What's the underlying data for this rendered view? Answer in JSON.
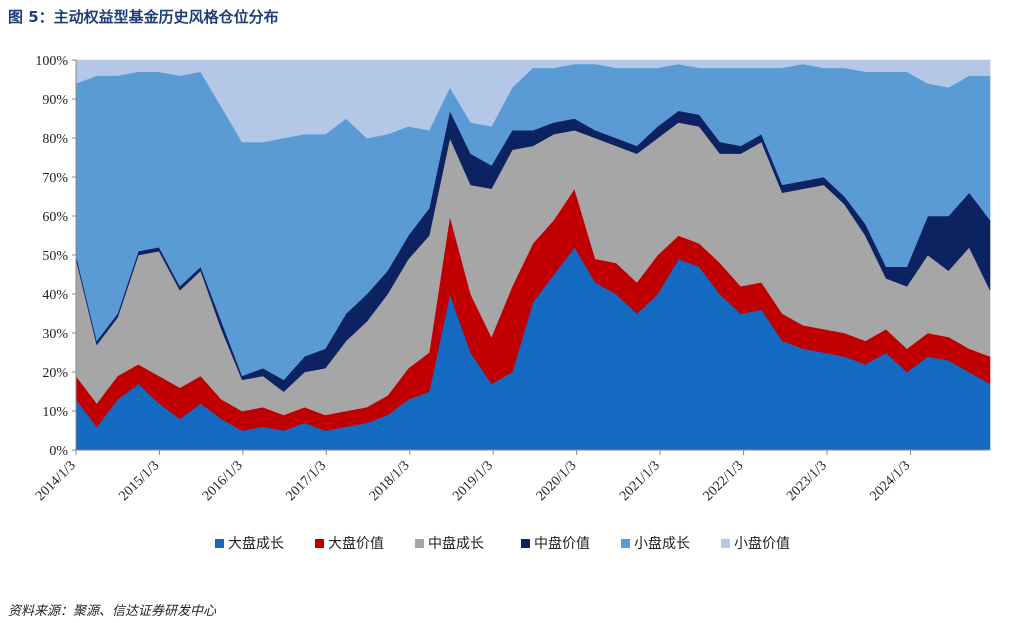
{
  "figure_title": "图 5：主动权益型基金历史风格仓位分布",
  "source_note": "资料来源：聚源、信达证券研发中心",
  "chart_data": {
    "type": "area",
    "stacked": true,
    "title": "图 5：主动权益型基金历史风格仓位分布",
    "xlabel": "",
    "ylabel": "",
    "ylim": [
      0,
      100
    ],
    "y_ticks": [
      "0%",
      "10%",
      "20%",
      "30%",
      "40%",
      "50%",
      "60%",
      "70%",
      "80%",
      "90%",
      "100%"
    ],
    "x_ticks": [
      "2014/1/3",
      "2015/1/3",
      "2016/1/3",
      "2017/1/3",
      "2018/1/3",
      "2019/1/3",
      "2020/1/3",
      "2021/1/3",
      "2022/1/3",
      "2023/1/3",
      "2024/1/3"
    ],
    "legend_position": "bottom",
    "grid": false,
    "x": [
      "2014-01",
      "2014-04",
      "2014-07",
      "2014-10",
      "2015-01",
      "2015-04",
      "2015-07",
      "2015-10",
      "2016-01",
      "2016-04",
      "2016-07",
      "2016-10",
      "2017-01",
      "2017-04",
      "2017-07",
      "2017-10",
      "2018-01",
      "2018-04",
      "2018-07",
      "2018-10",
      "2019-01",
      "2019-04",
      "2019-07",
      "2019-10",
      "2020-01",
      "2020-04",
      "2020-07",
      "2020-10",
      "2021-01",
      "2021-04",
      "2021-07",
      "2021-10",
      "2022-01",
      "2022-04",
      "2022-07",
      "2022-10",
      "2023-01",
      "2023-04",
      "2023-07",
      "2023-10",
      "2024-01",
      "2024-04",
      "2024-07",
      "2024-10",
      "2024-12"
    ],
    "series": [
      {
        "name": "大盘成长",
        "color": "#1469c0",
        "values": [
          13,
          6,
          13,
          17,
          12,
          8,
          12,
          8,
          5,
          6,
          5,
          7,
          5,
          6,
          7,
          9,
          13,
          15,
          40,
          25,
          17,
          20,
          38,
          45,
          52,
          43,
          40,
          35,
          40,
          49,
          47,
          40,
          35,
          36,
          28,
          26,
          25,
          24,
          22,
          25,
          20,
          24,
          23,
          20,
          17
        ]
      },
      {
        "name": "大盘价值",
        "color": "#c00000",
        "values": [
          6,
          6,
          6,
          5,
          7,
          8,
          7,
          5,
          5,
          5,
          4,
          4,
          4,
          4,
          4,
          5,
          8,
          10,
          20,
          15,
          12,
          22,
          15,
          14,
          15,
          6,
          8,
          8,
          10,
          6,
          6,
          8,
          7,
          7,
          7,
          6,
          6,
          6,
          6,
          6,
          6,
          6,
          6,
          6,
          7
        ]
      },
      {
        "name": "中盘成长",
        "color": "#a6a6a6",
        "values": [
          30,
          15,
          15,
          28,
          32,
          25,
          27,
          18,
          8,
          8,
          6,
          9,
          12,
          18,
          22,
          26,
          28,
          30,
          20,
          28,
          38,
          35,
          25,
          22,
          15,
          31,
          30,
          33,
          30,
          29,
          30,
          28,
          34,
          36,
          31,
          35,
          37,
          33,
          27,
          13,
          16,
          20,
          17,
          26,
          17
        ]
      },
      {
        "name": "中盘价值",
        "color": "#0d2260",
        "values": [
          1,
          1,
          1,
          1,
          1,
          1,
          1,
          2,
          1,
          2,
          3,
          4,
          5,
          7,
          7,
          6,
          6,
          7,
          7,
          8,
          6,
          5,
          4,
          3,
          3,
          2,
          2,
          2,
          3,
          3,
          3,
          3,
          2,
          2,
          2,
          2,
          2,
          2,
          3,
          3,
          5,
          10,
          14,
          14,
          18
        ]
      },
      {
        "name": "小盘成长",
        "color": "#5b9bd5",
        "values": [
          44,
          68,
          61,
          46,
          45,
          54,
          50,
          55,
          60,
          58,
          62,
          57,
          55,
          50,
          40,
          35,
          28,
          20,
          6,
          8,
          10,
          11,
          16,
          14,
          14,
          17,
          18,
          20,
          15,
          12,
          12,
          19,
          20,
          17,
          30,
          30,
          28,
          33,
          39,
          50,
          50,
          34,
          33,
          30,
          37
        ]
      },
      {
        "name": "小盘价值",
        "color": "#b4c7e7",
        "values": [
          6,
          4,
          4,
          3,
          3,
          4,
          3,
          12,
          21,
          21,
          20,
          19,
          19,
          15,
          20,
          19,
          17,
          18,
          7,
          16,
          17,
          7,
          2,
          2,
          1,
          1,
          2,
          2,
          2,
          1,
          2,
          2,
          2,
          2,
          2,
          1,
          2,
          2,
          3,
          3,
          3,
          6,
          7,
          4,
          4
        ]
      }
    ]
  }
}
